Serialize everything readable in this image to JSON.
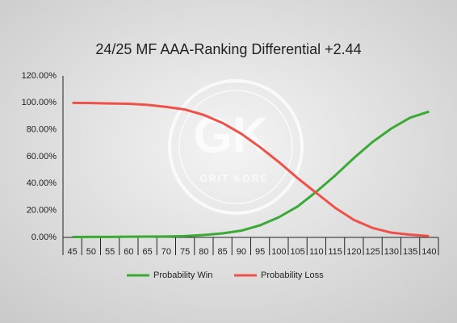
{
  "chart_data": {
    "type": "line",
    "title": "24/25 MF AAA-Ranking Differential +2.44",
    "watermark": {
      "logo": "GK",
      "text": "GRIT KORE"
    },
    "categories": [
      45,
      50,
      55,
      60,
      65,
      70,
      75,
      80,
      85,
      90,
      95,
      100,
      105,
      110,
      115,
      120,
      125,
      130,
      135,
      140
    ],
    "series": [
      {
        "name": "Probability Win",
        "color": "#3aa935",
        "values": [
          0.3,
          0.4,
          0.4,
          0.5,
          0.6,
          0.7,
          1,
          1.8,
          3,
          5,
          9,
          15,
          23,
          34,
          46,
          59,
          71,
          81,
          89,
          93.5
        ]
      },
      {
        "name": "Probability Loss",
        "color": "#f0504a",
        "values": [
          100,
          99.8,
          99.5,
          99.3,
          98.5,
          97,
          95,
          91,
          85,
          77,
          67,
          56,
          44,
          33,
          22,
          13,
          7,
          3.5,
          2,
          1
        ]
      }
    ],
    "ylim": [
      0,
      120
    ],
    "yticks": [
      {
        "value": 0,
        "label": "0.00%"
      },
      {
        "value": 20,
        "label": "20.00%"
      },
      {
        "value": 40,
        "label": "40.00%"
      },
      {
        "value": 60,
        "label": "60.00%"
      },
      {
        "value": 80,
        "label": "80.00%"
      },
      {
        "value": 100,
        "label": "100.00%"
      },
      {
        "value": 120,
        "label": "120.00%"
      }
    ],
    "grid": false,
    "legend": "bottom"
  }
}
